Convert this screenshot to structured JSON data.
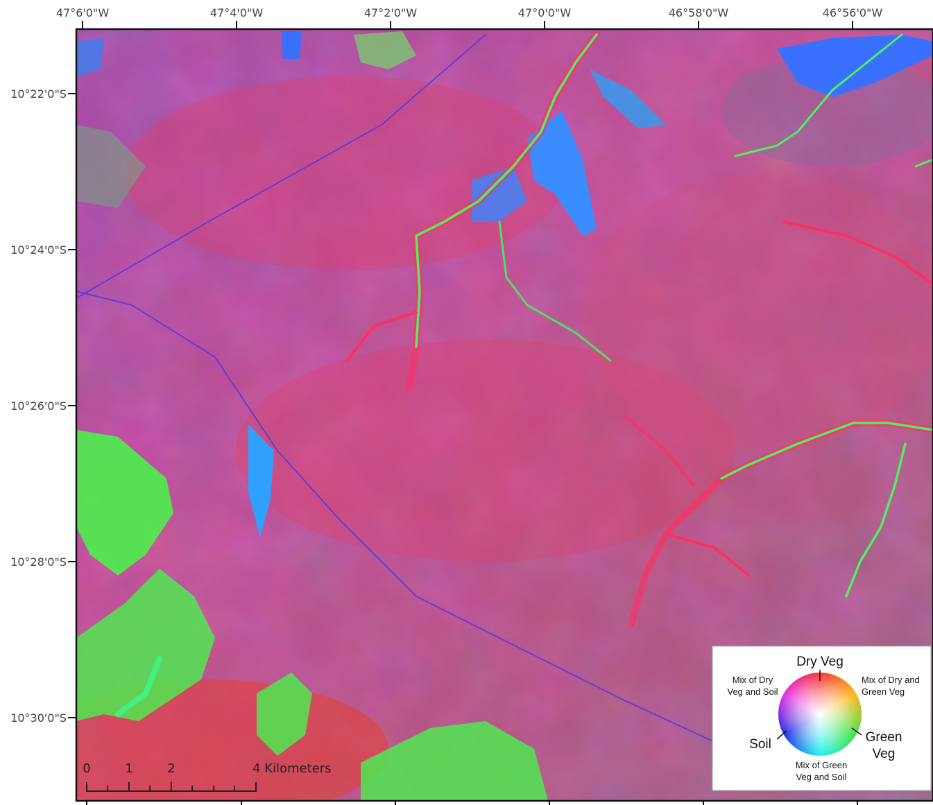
{
  "map": {
    "longitude_labels": [
      "47°6'0\"W",
      "47°4'0\"W",
      "47°2'0\"W",
      "47°0'0\"W",
      "46°58'0\"W",
      "46°56'0\"W"
    ],
    "latitude_labels": [
      "10°22'0\"S",
      "10°24'0\"S",
      "10°26'0\"S",
      "10°28'0\"S",
      "10°30'0\"S"
    ],
    "scale_bar": {
      "labels": [
        "0",
        "1",
        "2",
        "4 Kilometers"
      ]
    },
    "legend": {
      "top": "Dry Veg",
      "top_left": [
        "Mix of Dry",
        "Veg and Soil"
      ],
      "top_right": [
        "Mix of Dry and",
        "Green Veg"
      ],
      "left": "Soil",
      "right": [
        "Green",
        "Veg"
      ],
      "bottom": [
        "Mix of Green",
        "Veg and Soil"
      ]
    }
  }
}
